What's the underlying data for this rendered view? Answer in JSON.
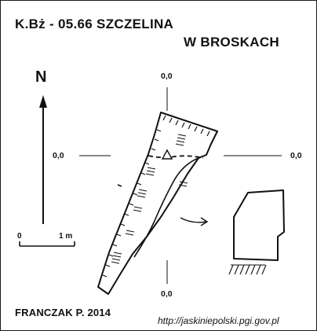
{
  "title": {
    "line1": "K.Bż - 05.66  SZCZELINA",
    "line2": "W BROSKACH"
  },
  "north_label": "N",
  "scale": {
    "start_label": "0",
    "end_label": "1 m"
  },
  "grid": {
    "top_label": "0,0",
    "left_label": "0,0",
    "right_label": "0,0",
    "bottom_label": "0,0"
  },
  "author": "FRANCZAK P.  2014",
  "source_url": "http://jaskiniepolski.pgi.gov.pl",
  "colors": {
    "ink": "#111111",
    "background": "#ffffff"
  },
  "symbols": [
    "north-arrow",
    "survey-station-triangle",
    "entrance-arrow",
    "cliff-hatching",
    "rubble-hatching"
  ]
}
